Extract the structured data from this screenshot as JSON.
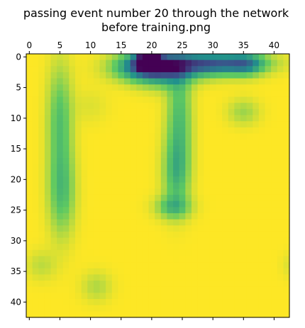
{
  "chart_data": {
    "type": "heatmap",
    "title_lines": [
      "passing event number 20 through the network",
      "before training.png"
    ],
    "xlabel": "",
    "ylabel": "",
    "grid": false,
    "colormap": "viridis",
    "colors": {
      "low": "#440154",
      "mid": "#21918c",
      "high": "#fde725"
    },
    "size": [
      43,
      43
    ],
    "x_ticks": [
      0,
      5,
      10,
      15,
      20,
      25,
      30,
      35,
      40
    ],
    "y_ticks": [
      0,
      5,
      10,
      15,
      20,
      25,
      30,
      35,
      40
    ],
    "x_axis_position": "top",
    "interpolation": "smooth",
    "blobs": [
      {
        "x": 19.5,
        "y": 0.6,
        "sx": 1.3,
        "sy": 1.0,
        "amp": 1.0
      },
      {
        "x": 18.0,
        "y": 1.5,
        "sx": 3.0,
        "sy": 1.6,
        "amp": 0.45
      },
      {
        "x": 22.0,
        "y": 2.0,
        "sx": 3.0,
        "sy": 2.0,
        "amp": 0.42
      },
      {
        "x": 30.0,
        "y": 1.0,
        "sx": 5.5,
        "sy": 1.2,
        "amp": 0.62
      },
      {
        "x": 35.5,
        "y": 1.2,
        "sx": 2.0,
        "sy": 1.3,
        "amp": 0.3
      },
      {
        "x": 24.0,
        "y": 2.0,
        "sx": 6.0,
        "sy": 1.4,
        "amp": 0.25
      },
      {
        "x": 5.0,
        "y": 10.0,
        "sx": 1.4,
        "sy": 6.0,
        "amp": 0.28
      },
      {
        "x": 5.3,
        "y": 22.0,
        "sx": 1.5,
        "sy": 5.0,
        "amp": 0.3
      },
      {
        "x": 24.5,
        "y": 10.0,
        "sx": 1.4,
        "sy": 6.0,
        "amp": 0.3
      },
      {
        "x": 24.0,
        "y": 19.0,
        "sx": 1.5,
        "sy": 4.0,
        "amp": 0.3
      },
      {
        "x": 23.5,
        "y": 24.5,
        "sx": 2.0,
        "sy": 1.3,
        "amp": 0.28
      },
      {
        "x": 35.0,
        "y": 9.0,
        "sx": 1.8,
        "sy": 1.5,
        "amp": 0.15
      },
      {
        "x": 10.0,
        "y": 8.0,
        "sx": 2.0,
        "sy": 2.0,
        "amp": 0.05
      },
      {
        "x": 2.0,
        "y": 34.0,
        "sx": 1.7,
        "sy": 1.7,
        "amp": 0.1
      },
      {
        "x": 11.0,
        "y": 37.5,
        "sx": 1.7,
        "sy": 1.7,
        "amp": 0.12
      },
      {
        "x": 42.5,
        "y": 34.0,
        "sx": 1.0,
        "sy": 1.5,
        "amp": 0.05
      }
    ]
  }
}
